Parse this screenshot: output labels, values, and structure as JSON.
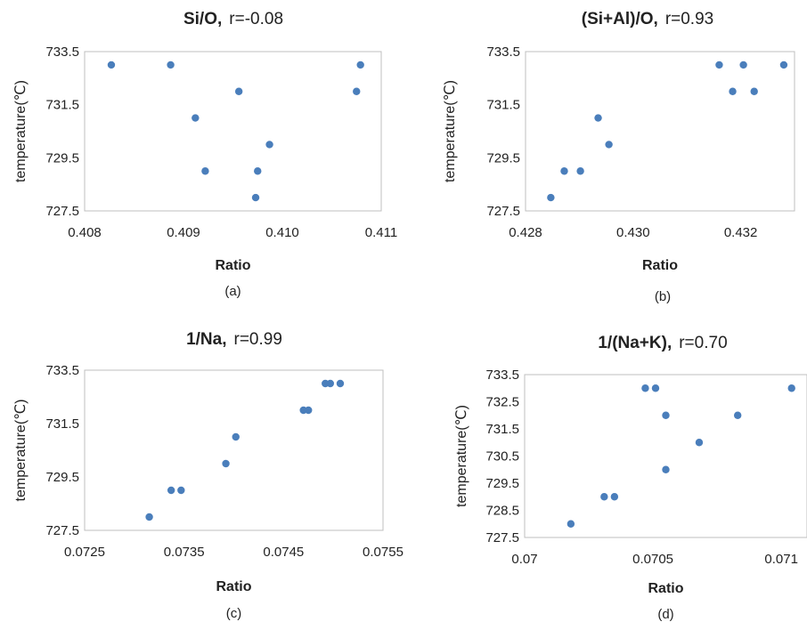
{
  "chart_data": [
    {
      "type": "scatter",
      "title_main": "Si/O,",
      "title_r": "r=-0.08",
      "xlabel": "Ratio",
      "ylabel": "temperature(℃)",
      "caption": "(a)",
      "xlim": [
        0.408,
        0.411
      ],
      "ylim": [
        727.5,
        733.5
      ],
      "xticks": [
        "0.408",
        "0.409",
        "0.410",
        "0.411"
      ],
      "yticks": [
        "727.5",
        "729.5",
        "731.5",
        "733.5"
      ],
      "x": [
        0.40827,
        0.40887,
        0.40912,
        0.40922,
        0.40956,
        0.40973,
        0.40975,
        0.40987,
        0.41075,
        0.41079
      ],
      "y": [
        733.0,
        733.0,
        731.0,
        729.0,
        732.0,
        728.0,
        729.0,
        730.0,
        732.0,
        733.0
      ],
      "color": "#4a7ebb"
    },
    {
      "type": "scatter",
      "title_main": "(Si+Al)/O,",
      "title_r": "r=0.93",
      "xlabel": "Ratio",
      "ylabel": "temperature(℃)",
      "caption": "(b)",
      "xlim": [
        0.428,
        0.433
      ],
      "ylim": [
        727.5,
        733.5
      ],
      "xticks": [
        "0.428",
        "0.430",
        "0.432"
      ],
      "yticks": [
        "727.5",
        "729.5",
        "731.5",
        "733.5"
      ],
      "x": [
        0.42847,
        0.42872,
        0.42902,
        0.42935,
        0.42955,
        0.4316,
        0.43185,
        0.43205,
        0.43225,
        0.4328
      ],
      "y": [
        728.0,
        729.0,
        729.0,
        731.0,
        730.0,
        733.0,
        732.0,
        733.0,
        732.0,
        733.0
      ],
      "color": "#4a7ebb"
    },
    {
      "type": "scatter",
      "title_main": "1/Na,",
      "title_r": "r=0.99",
      "xlabel": "Ratio",
      "ylabel": "temperature(℃)",
      "caption": "(c)",
      "xlim": [
        0.0725,
        0.0755
      ],
      "ylim": [
        727.5,
        733.5
      ],
      "xticks": [
        "0.0725",
        "0.0735",
        "0.0745",
        "0.0755"
      ],
      "yticks": [
        "727.5",
        "729.5",
        "731.5",
        "733.5"
      ],
      "x": [
        0.07315,
        0.07337,
        0.07347,
        0.07392,
        0.07402,
        0.0747,
        0.07475,
        0.07492,
        0.07497,
        0.07507
      ],
      "y": [
        728.0,
        729.0,
        729.0,
        730.0,
        731.0,
        732.0,
        732.0,
        733.0,
        733.0,
        733.0
      ],
      "color": "#4a7ebb"
    },
    {
      "type": "scatter",
      "title_main": "1/(Na+K),",
      "title_r": "r=0.70",
      "xlabel": "Ratio",
      "ylabel": "temperature(℃)",
      "caption": "(d)",
      "xlim": [
        0.07,
        0.0711
      ],
      "ylim": [
        727.5,
        733.5
      ],
      "xticks": [
        "0.07",
        "0.0705",
        "0.071"
      ],
      "yticks": [
        "727.5",
        "728.5",
        "729.5",
        "730.5",
        "731.5",
        "732.5",
        "733.5"
      ],
      "x": [
        0.07018,
        0.07031,
        0.07035,
        0.07047,
        0.07051,
        0.07055,
        0.07055,
        0.07068,
        0.07083,
        0.07104
      ],
      "y": [
        728.0,
        729.0,
        729.0,
        733.0,
        733.0,
        730.0,
        732.0,
        731.0,
        732.0,
        733.0
      ],
      "color": "#4a7ebb"
    }
  ]
}
